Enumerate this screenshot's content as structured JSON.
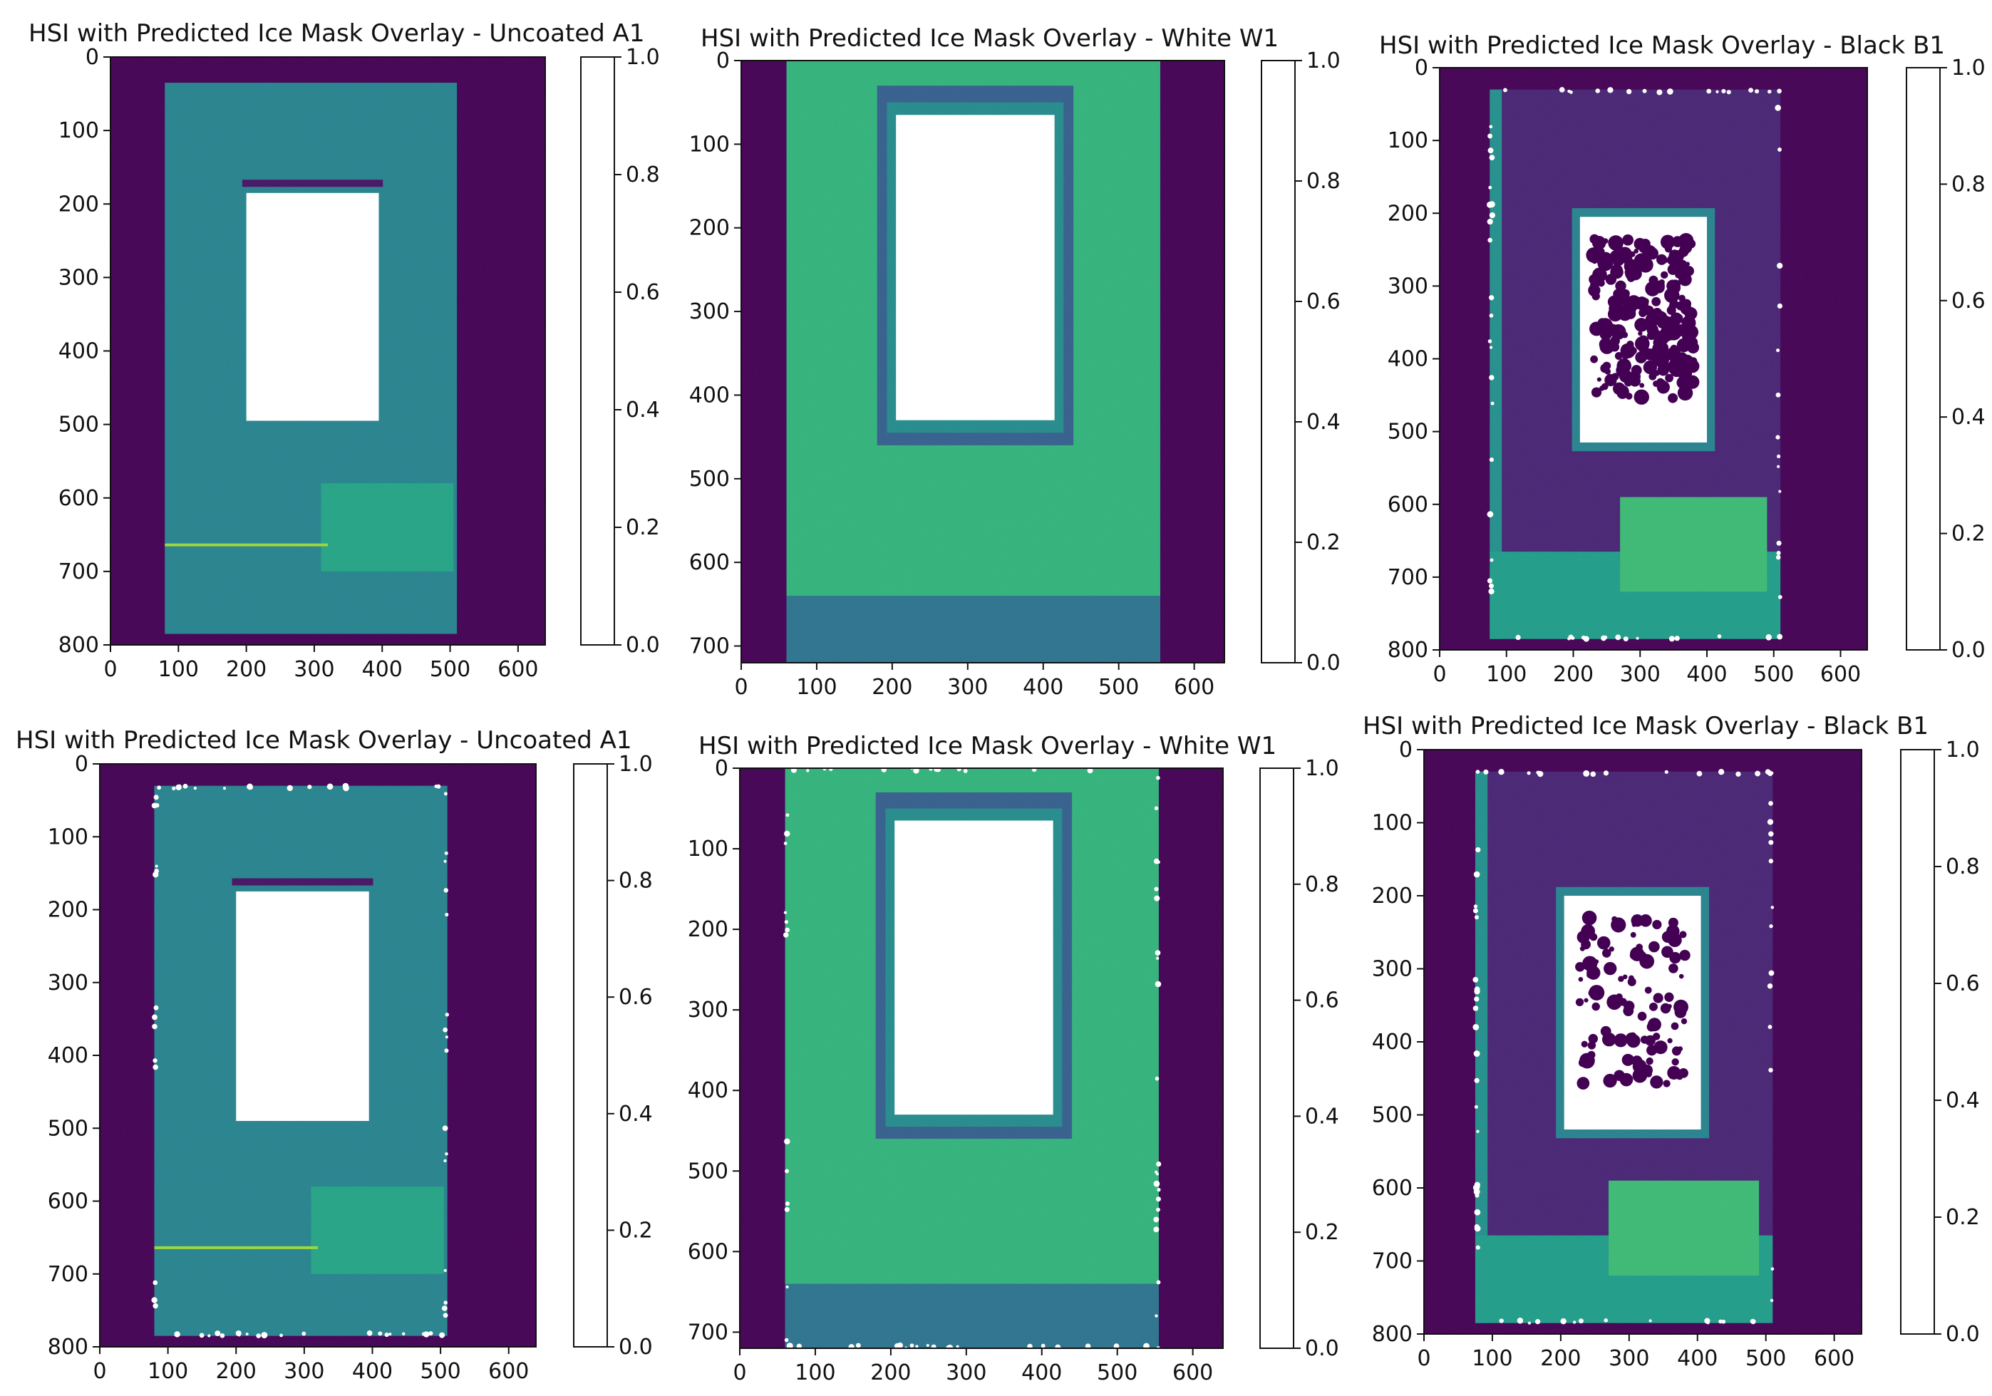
{
  "figure": {
    "colors": {
      "viridis_stops": [
        "#440154",
        "#482878",
        "#3e4989",
        "#31688e",
        "#26828e",
        "#1f9e89",
        "#35b779",
        "#6ece58",
        "#b5de2b",
        "#fde725"
      ],
      "mask": "#ffffff",
      "background": "#440154"
    }
  },
  "chart_data": [
    {
      "type": "heatmap",
      "panel": "top-left",
      "title": "HSI with Predicted Ice Mask Overlay - Uncoated A1",
      "xlim": [
        0,
        640
      ],
      "ylim": [
        800,
        0
      ],
      "xticks": [
        0,
        100,
        200,
        300,
        400,
        500,
        600
      ],
      "yticks": [
        0,
        100,
        200,
        300,
        400,
        500,
        600,
        700,
        800
      ],
      "colorbar": {
        "range": [
          0.0,
          1.0
        ],
        "ticks": [
          "0.0",
          "0.2",
          "0.4",
          "0.6",
          "0.8",
          "1.0"
        ]
      },
      "plate": {
        "x": [
          80,
          510
        ],
        "y": [
          35,
          785
        ],
        "value": 0.45
      },
      "mask_window": {
        "x": [
          200,
          395
        ],
        "y": [
          185,
          495
        ]
      },
      "mask_edge_speckle": false
    },
    {
      "type": "heatmap",
      "panel": "top-middle",
      "title": "HSI with Predicted Ice Mask Overlay - White W1",
      "xlim": [
        0,
        640
      ],
      "ylim": [
        720,
        0
      ],
      "xticks": [
        0,
        100,
        200,
        300,
        400,
        500,
        600
      ],
      "yticks": [
        0,
        100,
        200,
        300,
        400,
        500,
        600,
        700
      ],
      "colorbar": {
        "range": [
          0.0,
          1.0
        ],
        "ticks": [
          "0.0",
          "0.2",
          "0.4",
          "0.6",
          "0.8",
          "1.0"
        ]
      },
      "plate": {
        "x": [
          60,
          555
        ],
        "y": [
          0,
          720
        ],
        "value": 0.65
      },
      "mask_window": {
        "x": [
          205,
          415
        ],
        "y": [
          65,
          430
        ]
      },
      "mask_edge_speckle": false
    },
    {
      "type": "heatmap",
      "panel": "top-right",
      "title": "HSI with Predicted Ice Mask Overlay - Black B1",
      "xlim": [
        0,
        640
      ],
      "ylim": [
        800,
        0
      ],
      "xticks": [
        0,
        100,
        200,
        300,
        400,
        500,
        600
      ],
      "yticks": [
        0,
        100,
        200,
        300,
        400,
        500,
        600,
        700,
        800
      ],
      "colorbar": {
        "range": [
          0.0,
          1.0
        ],
        "ticks": [
          "0.0",
          "0.2",
          "0.4",
          "0.6",
          "0.8",
          "1.0"
        ]
      },
      "plate": {
        "x": [
          75,
          510
        ],
        "y": [
          30,
          785
        ],
        "value": 0.1
      },
      "mask_window": {
        "x": [
          210,
          400
        ],
        "y": [
          205,
          515
        ]
      },
      "mask_edge_speckle": true
    },
    {
      "type": "heatmap",
      "panel": "bottom-left",
      "title": "HSI with Predicted Ice Mask Overlay - Uncoated A1",
      "xlim": [
        0,
        640
      ],
      "ylim": [
        800,
        0
      ],
      "xticks": [
        0,
        100,
        200,
        300,
        400,
        500,
        600
      ],
      "yticks": [
        0,
        100,
        200,
        300,
        400,
        500,
        600,
        700,
        800
      ],
      "colorbar": {
        "range": [
          0.0,
          1.0
        ],
        "ticks": [
          "0.0",
          "0.2",
          "0.4",
          "0.6",
          "0.8",
          "1.0"
        ]
      },
      "plate": {
        "x": [
          80,
          510
        ],
        "y": [
          30,
          785
        ],
        "value": 0.45
      },
      "mask_window": {
        "x": [
          200,
          395
        ],
        "y": [
          175,
          490
        ]
      },
      "mask_edge_speckle": true
    },
    {
      "type": "heatmap",
      "panel": "bottom-middle",
      "title": "HSI with Predicted Ice Mask Overlay - White W1",
      "xlim": [
        0,
        640
      ],
      "ylim": [
        720,
        0
      ],
      "xticks": [
        0,
        100,
        200,
        300,
        400,
        500,
        600
      ],
      "yticks": [
        0,
        100,
        200,
        300,
        400,
        500,
        600,
        700
      ],
      "colorbar": {
        "range": [
          0.0,
          1.0
        ],
        "ticks": [
          "0.0",
          "0.2",
          "0.4",
          "0.6",
          "0.8",
          "1.0"
        ]
      },
      "plate": {
        "x": [
          60,
          555
        ],
        "y": [
          0,
          720
        ],
        "value": 0.65
      },
      "mask_window": {
        "x": [
          205,
          415
        ],
        "y": [
          65,
          430
        ]
      },
      "mask_edge_speckle": true
    },
    {
      "type": "heatmap",
      "panel": "bottom-right",
      "title": "HSI with Predicted Ice Mask Overlay - Black B1",
      "xlim": [
        0,
        640
      ],
      "ylim": [
        800,
        0
      ],
      "xticks": [
        0,
        100,
        200,
        300,
        400,
        500,
        600
      ],
      "yticks": [
        0,
        100,
        200,
        300,
        400,
        500,
        600,
        700,
        800
      ],
      "colorbar": {
        "range": [
          0.0,
          1.0
        ],
        "ticks": [
          "0.0",
          "0.2",
          "0.4",
          "0.6",
          "0.8",
          "1.0"
        ]
      },
      "plate": {
        "x": [
          75,
          510
        ],
        "y": [
          30,
          785
        ],
        "value": 0.1
      },
      "mask_window": {
        "x": [
          205,
          405
        ],
        "y": [
          200,
          520
        ]
      },
      "mask_edge_speckle": true
    }
  ]
}
